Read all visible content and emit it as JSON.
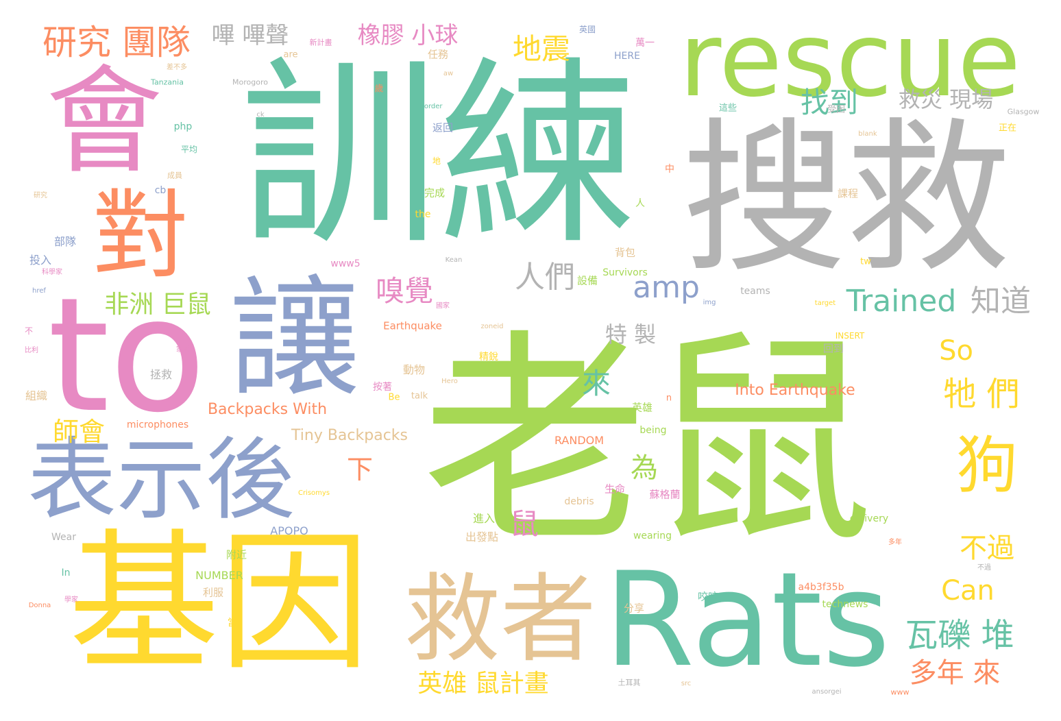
{
  "palette": {
    "green": "#a6d854",
    "teal": "#66c2a5",
    "gray": "#b3b3b3",
    "yellow": "#ffd92f",
    "pink": "#e78ac3",
    "orange": "#fc8d62",
    "blue": "#8da0cb",
    "tan": "#e5c494"
  },
  "words": [
    {
      "text": "老鼠",
      "color": "#a6d854"
    },
    {
      "text": "訓練",
      "color": "#66c2a5"
    },
    {
      "text": "搜救",
      "color": "#b3b3b3"
    },
    {
      "text": "rescue",
      "color": "#a6d854"
    },
    {
      "text": "會",
      "color": "#e78ac3"
    },
    {
      "text": "to",
      "color": "#e78ac3"
    },
    {
      "text": "讓",
      "color": "#8da0cb"
    },
    {
      "text": "基因",
      "color": "#ffd92f"
    },
    {
      "text": "Rats",
      "color": "#66c2a5"
    },
    {
      "text": "救者",
      "color": "#e5c494"
    },
    {
      "text": "表示後",
      "color": "#8da0cb"
    },
    {
      "text": "對",
      "color": "#fc8d62"
    },
    {
      "text": "狗",
      "color": "#ffd92f"
    },
    {
      "text": "研究 團隊",
      "color": "#fc8d62"
    },
    {
      "text": "嗶 嗶聲",
      "color": "#b3b3b3"
    },
    {
      "text": "橡膠 小球",
      "color": "#e78ac3"
    },
    {
      "text": "地震",
      "color": "#ffd92f"
    },
    {
      "text": "找到",
      "color": "#66c2a5"
    },
    {
      "text": "救災 現場",
      "color": "#b3b3b3"
    },
    {
      "text": "人們",
      "color": "#b3b3b3"
    },
    {
      "text": "amp",
      "color": "#8da0cb"
    },
    {
      "text": "Trained",
      "color": "#66c2a5"
    },
    {
      "text": "知道",
      "color": "#b3b3b3"
    },
    {
      "text": "嗅覺",
      "color": "#e78ac3"
    },
    {
      "text": "非洲 巨鼠",
      "color": "#a6d854"
    },
    {
      "text": "特 製",
      "color": "#b3b3b3"
    },
    {
      "text": "So",
      "color": "#ffd92f"
    },
    {
      "text": "牠 們",
      "color": "#ffd92f"
    },
    {
      "text": "來",
      "color": "#66c2a5"
    },
    {
      "text": "為",
      "color": "#a6d854"
    },
    {
      "text": "鼠",
      "color": "#e78ac3"
    },
    {
      "text": "下",
      "color": "#fc8d62"
    },
    {
      "text": "師會",
      "color": "#ffd92f"
    },
    {
      "text": "不過",
      "color": "#ffd92f"
    },
    {
      "text": "Can",
      "color": "#ffd92f"
    },
    {
      "text": "瓦礫 堆",
      "color": "#66c2a5"
    },
    {
      "text": "多年 來",
      "color": "#fc8d62"
    },
    {
      "text": "英雄 鼠計畫",
      "color": "#ffd92f"
    },
    {
      "text": "Into Earthquake",
      "color": "#fc8d62"
    },
    {
      "text": "Backpacks With",
      "color": "#fc8d62"
    },
    {
      "text": "Tiny Backpacks",
      "color": "#e5c494"
    },
    {
      "text": "microphones",
      "color": "#fc8d62"
    },
    {
      "text": "RANDOM",
      "color": "#fc8d62"
    },
    {
      "text": "APOPO",
      "color": "#8da0cb"
    },
    {
      "text": "NUMBER",
      "color": "#a6d854"
    },
    {
      "text": "Earthquake",
      "color": "#fc8d62"
    },
    {
      "text": "Survivors",
      "color": "#a6d854"
    },
    {
      "text": "Tanzania",
      "color": "#66c2a5"
    },
    {
      "text": "Morogoro",
      "color": "#b3b3b3"
    },
    {
      "text": "HERE",
      "color": "#8da0cb"
    },
    {
      "text": "teams",
      "color": "#b3b3b3"
    },
    {
      "text": "delivery",
      "color": "#a6d854"
    },
    {
      "text": "wearing",
      "color": "#a6d854"
    },
    {
      "text": "debris",
      "color": "#e5c494"
    },
    {
      "text": "technews",
      "color": "#a6d854"
    },
    {
      "text": "a4b3f35b",
      "color": "#fc8d62"
    },
    {
      "text": "Wear",
      "color": "#b3b3b3"
    },
    {
      "text": "being",
      "color": "#a6d854"
    },
    {
      "text": "talk",
      "color": "#e5c494"
    },
    {
      "text": "www5",
      "color": "#e78ac3"
    },
    {
      "text": "the",
      "color": "#ffd92f"
    },
    {
      "text": "php",
      "color": "#66c2a5"
    },
    {
      "text": "cb",
      "color": "#8da0cb"
    },
    {
      "text": "In",
      "color": "#66c2a5"
    },
    {
      "text": "Be",
      "color": "#ffd92f"
    },
    {
      "text": "tw",
      "color": "#ffd92f"
    },
    {
      "text": "n",
      "color": "#fc8d62"
    },
    {
      "text": "INSERT",
      "color": "#ffd92f"
    },
    {
      "text": "are",
      "color": "#e5c494"
    },
    {
      "text": "Glasgow",
      "color": "#b3b3b3"
    },
    {
      "text": "Crisomys",
      "color": "#ffd92f"
    },
    {
      "text": "Kean",
      "color": "#b3b3b3"
    },
    {
      "text": "zoneid",
      "color": "#e5c494"
    },
    {
      "text": "img",
      "color": "#8da0cb"
    },
    {
      "text": "target",
      "color": "#ffd92f"
    },
    {
      "text": "border",
      "color": "#66c2a5"
    },
    {
      "text": "blank",
      "color": "#e5c494"
    },
    {
      "text": "ck",
      "color": "#b3b3b3"
    },
    {
      "text": "src",
      "color": "#e5c494"
    },
    {
      "text": "www",
      "color": "#fc8d62"
    },
    {
      "text": "Donna",
      "color": "#fc8d62"
    },
    {
      "text": "ansorgei",
      "color": "#b3b3b3"
    },
    {
      "text": "href",
      "color": "#8da0cb"
    },
    {
      "text": "Hero",
      "color": "#e5c494"
    },
    {
      "text": "aw",
      "color": "#e5c494"
    },
    {
      "text": "投入",
      "color": "#8da0cb"
    },
    {
      "text": "部隊",
      "color": "#8da0cb"
    },
    {
      "text": "拯救",
      "color": "#b3b3b3"
    },
    {
      "text": "組織",
      "color": "#e5c494"
    },
    {
      "text": "動物",
      "color": "#e5c494"
    },
    {
      "text": "按著",
      "color": "#e78ac3"
    },
    {
      "text": "出發點",
      "color": "#e5c494"
    },
    {
      "text": "進入",
      "color": "#a6d854"
    },
    {
      "text": "生命",
      "color": "#e78ac3"
    },
    {
      "text": "蘇格蘭",
      "color": "#e78ac3"
    },
    {
      "text": "英雄",
      "color": "#a6d854"
    },
    {
      "text": "附近",
      "color": "#a6d854"
    },
    {
      "text": "利服",
      "color": "#e5c494"
    },
    {
      "text": "咬咬",
      "color": "#66c2a5"
    },
    {
      "text": "分享",
      "color": "#e5c494"
    },
    {
      "text": "完成",
      "color": "#a6d854"
    },
    {
      "text": "返回",
      "color": "#8da0cb"
    },
    {
      "text": "任務",
      "color": "#e5c494"
    },
    {
      "text": "回到",
      "color": "#b3b3b3"
    },
    {
      "text": "課程",
      "color": "#e5c494"
    },
    {
      "text": "設備",
      "color": "#a6d854"
    },
    {
      "text": "背包",
      "color": "#e5c494"
    },
    {
      "text": "英國",
      "color": "#8da0cb"
    },
    {
      "text": "萬一",
      "color": "#e78ac3"
    },
    {
      "text": "地",
      "color": "#ffd92f"
    },
    {
      "text": "這些",
      "color": "#66c2a5"
    },
    {
      "text": "受困",
      "color": "#b3b3b3"
    },
    {
      "text": "正在",
      "color": "#ffd92f"
    },
    {
      "text": "成員",
      "color": "#e5c494"
    },
    {
      "text": "平均",
      "color": "#66c2a5"
    },
    {
      "text": "中",
      "color": "#fc8d62"
    },
    {
      "text": "人",
      "color": "#a6d854"
    },
    {
      "text": "當",
      "color": "#ffd92f"
    },
    {
      "text": "精銳",
      "color": "#ffd92f"
    },
    {
      "text": "不",
      "color": "#e78ac3"
    },
    {
      "text": "不過",
      "color": "#b3b3b3"
    },
    {
      "text": "土耳其",
      "color": "#b3b3b3"
    },
    {
      "text": "多年",
      "color": "#fc8d62"
    },
    {
      "text": "新計畫",
      "color": "#e78ac3"
    },
    {
      "text": "差不多",
      "color": "#e5c494"
    },
    {
      "text": "國家",
      "color": "#e78ac3"
    },
    {
      "text": "科學家",
      "color": "#e78ac3"
    },
    {
      "text": "歲",
      "color": "#fc8d62"
    },
    {
      "text": "學家",
      "color": "#e78ac3"
    },
    {
      "text": "家鄉",
      "color": "#e78ac3"
    },
    {
      "text": "比利",
      "color": "#e78ac3"
    },
    {
      "text": "研究",
      "color": "#e5c494"
    }
  ]
}
